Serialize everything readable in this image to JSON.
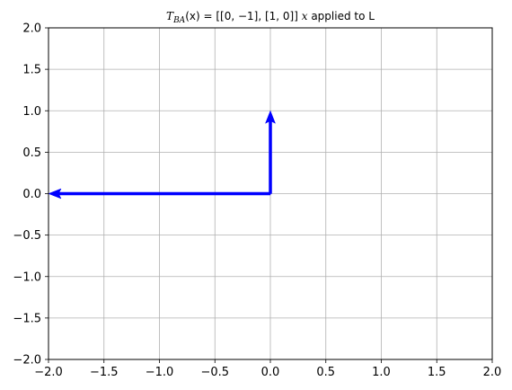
{
  "chart_data": {
    "type": "vector-plot",
    "title": {
      "prefix": "T",
      "subscript": "BA",
      "mid": "(x) = [[0, −1], [1, 0]]",
      "var": "x",
      "suffix": " applied to L"
    },
    "xlim": [
      -2,
      2
    ],
    "ylim": [
      -2,
      2
    ],
    "xticks": [
      -2.0,
      -1.5,
      -1.0,
      -0.5,
      0.0,
      0.5,
      1.0,
      1.5,
      2.0
    ],
    "yticks": [
      -2.0,
      -1.5,
      -1.0,
      -0.5,
      0.0,
      0.5,
      1.0,
      1.5,
      2.0
    ],
    "xtick_labels": [
      "−2.0",
      "−1.5",
      "−1.0",
      "−0.5",
      "0.0",
      "0.5",
      "1.0",
      "1.5",
      "2.0"
    ],
    "ytick_labels": [
      "−2.0",
      "−1.5",
      "−1.0",
      "−0.5",
      "0.0",
      "0.5",
      "1.0",
      "1.5",
      "2.0"
    ],
    "grid": true,
    "vectors": [
      {
        "origin": [
          0,
          0
        ],
        "end": [
          0,
          1
        ],
        "color": "#0000ff"
      },
      {
        "origin": [
          0,
          0
        ],
        "end": [
          -2,
          0
        ],
        "color": "#0000ff"
      }
    ]
  }
}
